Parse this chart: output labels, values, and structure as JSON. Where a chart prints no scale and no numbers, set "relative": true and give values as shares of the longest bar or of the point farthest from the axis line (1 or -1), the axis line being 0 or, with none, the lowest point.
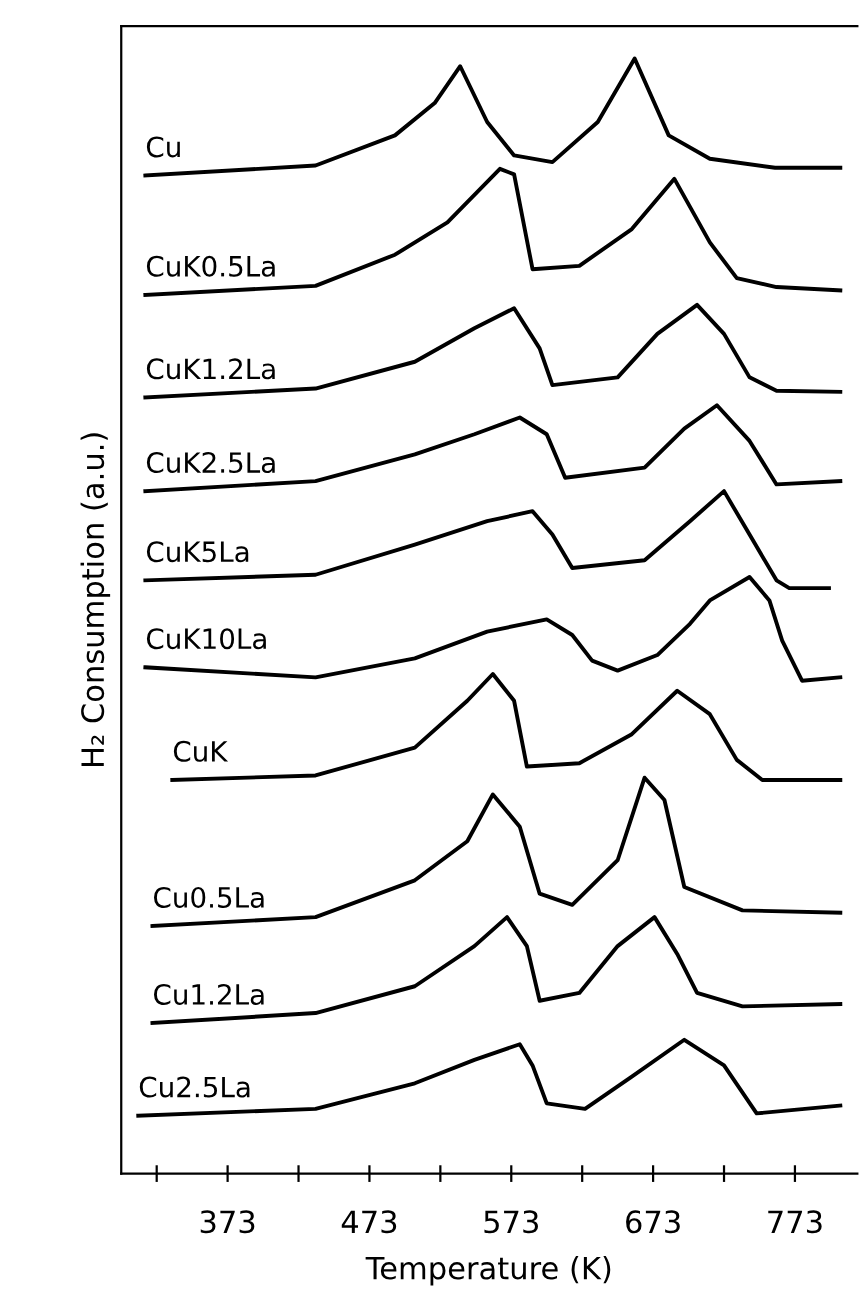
{
  "chart_data": {
    "type": "line",
    "relative": true,
    "xlabel": "Temperature (K)",
    "ylabel": "H₂ Consumption (a.u.)",
    "xlim": [
      298,
      817
    ],
    "xticks": [
      {
        "value": 323,
        "label": null
      },
      373,
      {
        "value": 423,
        "label": null
      },
      473,
      {
        "value": 523,
        "label": null
      },
      573,
      {
        "value": 623,
        "label": null
      },
      673,
      {
        "value": 723,
        "label": null
      },
      773
    ],
    "grid": false,
    "legend": false,
    "marker": "none",
    "line_style": "solid",
    "tick_labels": "x",
    "series": [
      {
        "name": "Cu",
        "color": "#000000",
        "x": [
          315,
          435,
          491,
          519,
          537,
          556,
          575,
          602,
          634,
          660,
          684,
          713,
          759,
          805
        ],
        "values": [
          0.895,
          0.904,
          0.931,
          0.96,
          0.993,
          0.943,
          0.913,
          0.907,
          0.943,
          1.0,
          0.931,
          0.91,
          0.902,
          0.902
        ]
      },
      {
        "name": "CuK0.5La",
        "color": "#000000",
        "x": [
          315,
          435,
          491,
          528,
          565,
          575,
          588,
          621,
          658,
          688,
          713,
          732,
          760,
          805
        ],
        "values": [
          0.788,
          0.796,
          0.824,
          0.853,
          0.901,
          0.896,
          0.811,
          0.814,
          0.847,
          0.892,
          0.835,
          0.803,
          0.795,
          0.792
        ]
      },
      {
        "name": "CuK1.2La",
        "color": "#000000",
        "x": [
          315,
          435,
          505,
          547,
          575,
          593,
          602,
          648,
          676,
          704,
          723,
          741,
          760,
          805
        ],
        "values": [
          0.696,
          0.704,
          0.728,
          0.758,
          0.776,
          0.74,
          0.707,
          0.714,
          0.753,
          0.779,
          0.753,
          0.714,
          0.702,
          0.701
        ]
      },
      {
        "name": "CuK2.5La",
        "color": "#000000",
        "x": [
          315,
          435,
          505,
          547,
          579,
          598,
          611,
          667,
          695,
          718,
          741,
          760,
          805
        ],
        "values": [
          0.612,
          0.621,
          0.645,
          0.663,
          0.678,
          0.663,
          0.624,
          0.633,
          0.668,
          0.689,
          0.657,
          0.618,
          0.621
        ]
      },
      {
        "name": "CuK5La",
        "color": "#000000",
        "x": [
          315,
          435,
          505,
          556,
          588,
          602,
          616,
          667,
          699,
          723,
          741,
          760,
          769,
          797
        ],
        "values": [
          0.532,
          0.537,
          0.564,
          0.585,
          0.594,
          0.573,
          0.543,
          0.55,
          0.585,
          0.612,
          0.573,
          0.532,
          0.525,
          0.525
        ]
      },
      {
        "name": "CuK10La",
        "color": "#000000",
        "x": [
          315,
          435,
          505,
          556,
          598,
          616,
          630,
          648,
          676,
          699,
          713,
          741,
          755,
          764,
          778,
          805
        ],
        "values": [
          0.454,
          0.445,
          0.462,
          0.486,
          0.497,
          0.483,
          0.46,
          0.451,
          0.465,
          0.493,
          0.514,
          0.535,
          0.514,
          0.478,
          0.442,
          0.445
        ]
      },
      {
        "name": "CuK",
        "color": "#000000",
        "x": [
          334,
          435,
          505,
          542,
          560,
          575,
          584,
          621,
          658,
          690,
          713,
          732,
          750,
          805
        ],
        "values": [
          0.353,
          0.357,
          0.382,
          0.424,
          0.448,
          0.424,
          0.365,
          0.368,
          0.394,
          0.433,
          0.412,
          0.371,
          0.353,
          0.353
        ]
      },
      {
        "name": "Cu0.5La",
        "color": "#000000",
        "x": [
          320,
          435,
          505,
          542,
          560,
          579,
          593,
          616,
          648,
          667,
          681,
          695,
          736,
          805
        ],
        "values": [
          0.222,
          0.23,
          0.263,
          0.298,
          0.34,
          0.311,
          0.251,
          0.241,
          0.281,
          0.355,
          0.335,
          0.257,
          0.236,
          0.234
        ]
      },
      {
        "name": "Cu1.2La",
        "color": "#000000",
        "x": [
          320,
          435,
          505,
          547,
          570,
          584,
          593,
          621,
          648,
          674,
          690,
          704,
          736,
          805
        ],
        "values": [
          0.135,
          0.144,
          0.168,
          0.204,
          0.23,
          0.204,
          0.155,
          0.162,
          0.204,
          0.23,
          0.197,
          0.162,
          0.15,
          0.152
        ]
      },
      {
        "name": "Cu2.5La",
        "color": "#000000",
        "x": [
          310,
          435,
          505,
          547,
          579,
          588,
          598,
          625,
          658,
          695,
          723,
          746,
          805
        ],
        "values": [
          0.052,
          0.058,
          0.081,
          0.102,
          0.116,
          0.097,
          0.063,
          0.058,
          0.087,
          0.12,
          0.097,
          0.054,
          0.061
        ]
      }
    ]
  }
}
